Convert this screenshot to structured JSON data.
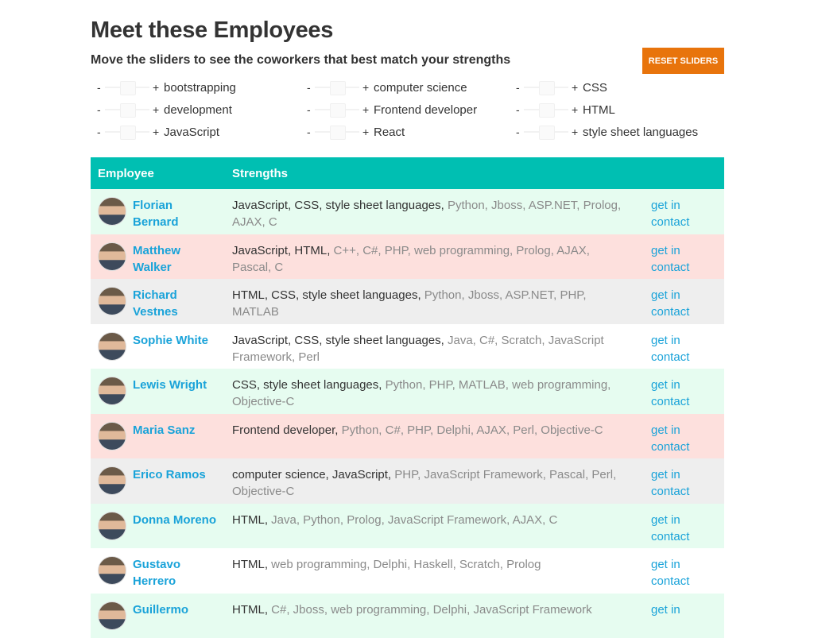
{
  "header": {
    "title": "Meet these Employees",
    "subtitle": "Move the sliders to see the coworkers that best match your strengths",
    "reset_label": "RESET SLIDERS"
  },
  "sliders": {
    "minus": "-",
    "plus": "+",
    "items": [
      {
        "label": "bootstrapping"
      },
      {
        "label": "computer science"
      },
      {
        "label": "CSS"
      },
      {
        "label": "development"
      },
      {
        "label": "Frontend developer"
      },
      {
        "label": "HTML"
      },
      {
        "label": "JavaScript"
      },
      {
        "label": "React"
      },
      {
        "label": "style sheet languages"
      }
    ]
  },
  "table": {
    "headers": {
      "employee": "Employee",
      "strengths": "Strengths",
      "contact": ""
    },
    "rows": [
      {
        "name": "Florian Bernard",
        "strong": "JavaScript, CSS, style sheet languages,",
        "weak": " Python, Jboss, ASP.NET, Prolog, AJAX, C",
        "contact": "get in contact",
        "shade": "green"
      },
      {
        "name": "Matthew Walker",
        "strong": "JavaScript, HTML,",
        "weak": " C++, C#, PHP, web programming, Prolog, AJAX, Pascal, C",
        "contact": "get in contact",
        "shade": "pink"
      },
      {
        "name": "Richard Vestnes",
        "strong": "HTML, CSS, style sheet languages,",
        "weak": " Python, Jboss, ASP.NET, PHP, MATLAB",
        "contact": "get in contact",
        "shade": "grey"
      },
      {
        "name": "Sophie White",
        "strong": "JavaScript, CSS, style sheet languages,",
        "weak": " Java, C#, Scratch, JavaScript Framework, Perl",
        "contact": "get in contact",
        "shade": "white"
      },
      {
        "name": "Lewis Wright",
        "strong": "CSS, style sheet languages,",
        "weak": " Python, PHP, MATLAB, web programming, Objective-C",
        "contact": "get in contact",
        "shade": "green"
      },
      {
        "name": "Maria Sanz",
        "strong": "Frontend developer,",
        "weak": " Python, C#, PHP, Delphi, AJAX, Perl, Objective-C",
        "contact": "get in contact",
        "shade": "pink"
      },
      {
        "name": "Erico Ramos",
        "strong": "computer science, JavaScript,",
        "weak": " PHP, JavaScript Framework, Pascal, Perl, Objective-C",
        "contact": "get in contact",
        "shade": "grey"
      },
      {
        "name": "Donna Moreno",
        "strong": "HTML,",
        "weak": " Java, Python, Prolog, JavaScript Framework, AJAX, C",
        "contact": "get in contact",
        "shade": "green"
      },
      {
        "name": "Gustavo Herrero",
        "strong": "HTML,",
        "weak": " web programming, Delphi, Haskell, Scratch, Prolog",
        "contact": "get in contact",
        "shade": "white"
      },
      {
        "name": "Guillermo",
        "strong": "HTML,",
        "weak": " C#, Jboss, web programming, Delphi, JavaScript Framework",
        "contact": "get in",
        "shade": "green"
      }
    ]
  },
  "colors": {
    "accent_teal": "#00bfb2",
    "reset_orange": "#e8740c",
    "link_blue": "#1aa3d9",
    "row_green": "#e6fcf0",
    "row_pink": "#fde0dd",
    "row_grey": "#eeeeee"
  },
  "icons": {
    "avatar": "person-avatar-icon"
  }
}
